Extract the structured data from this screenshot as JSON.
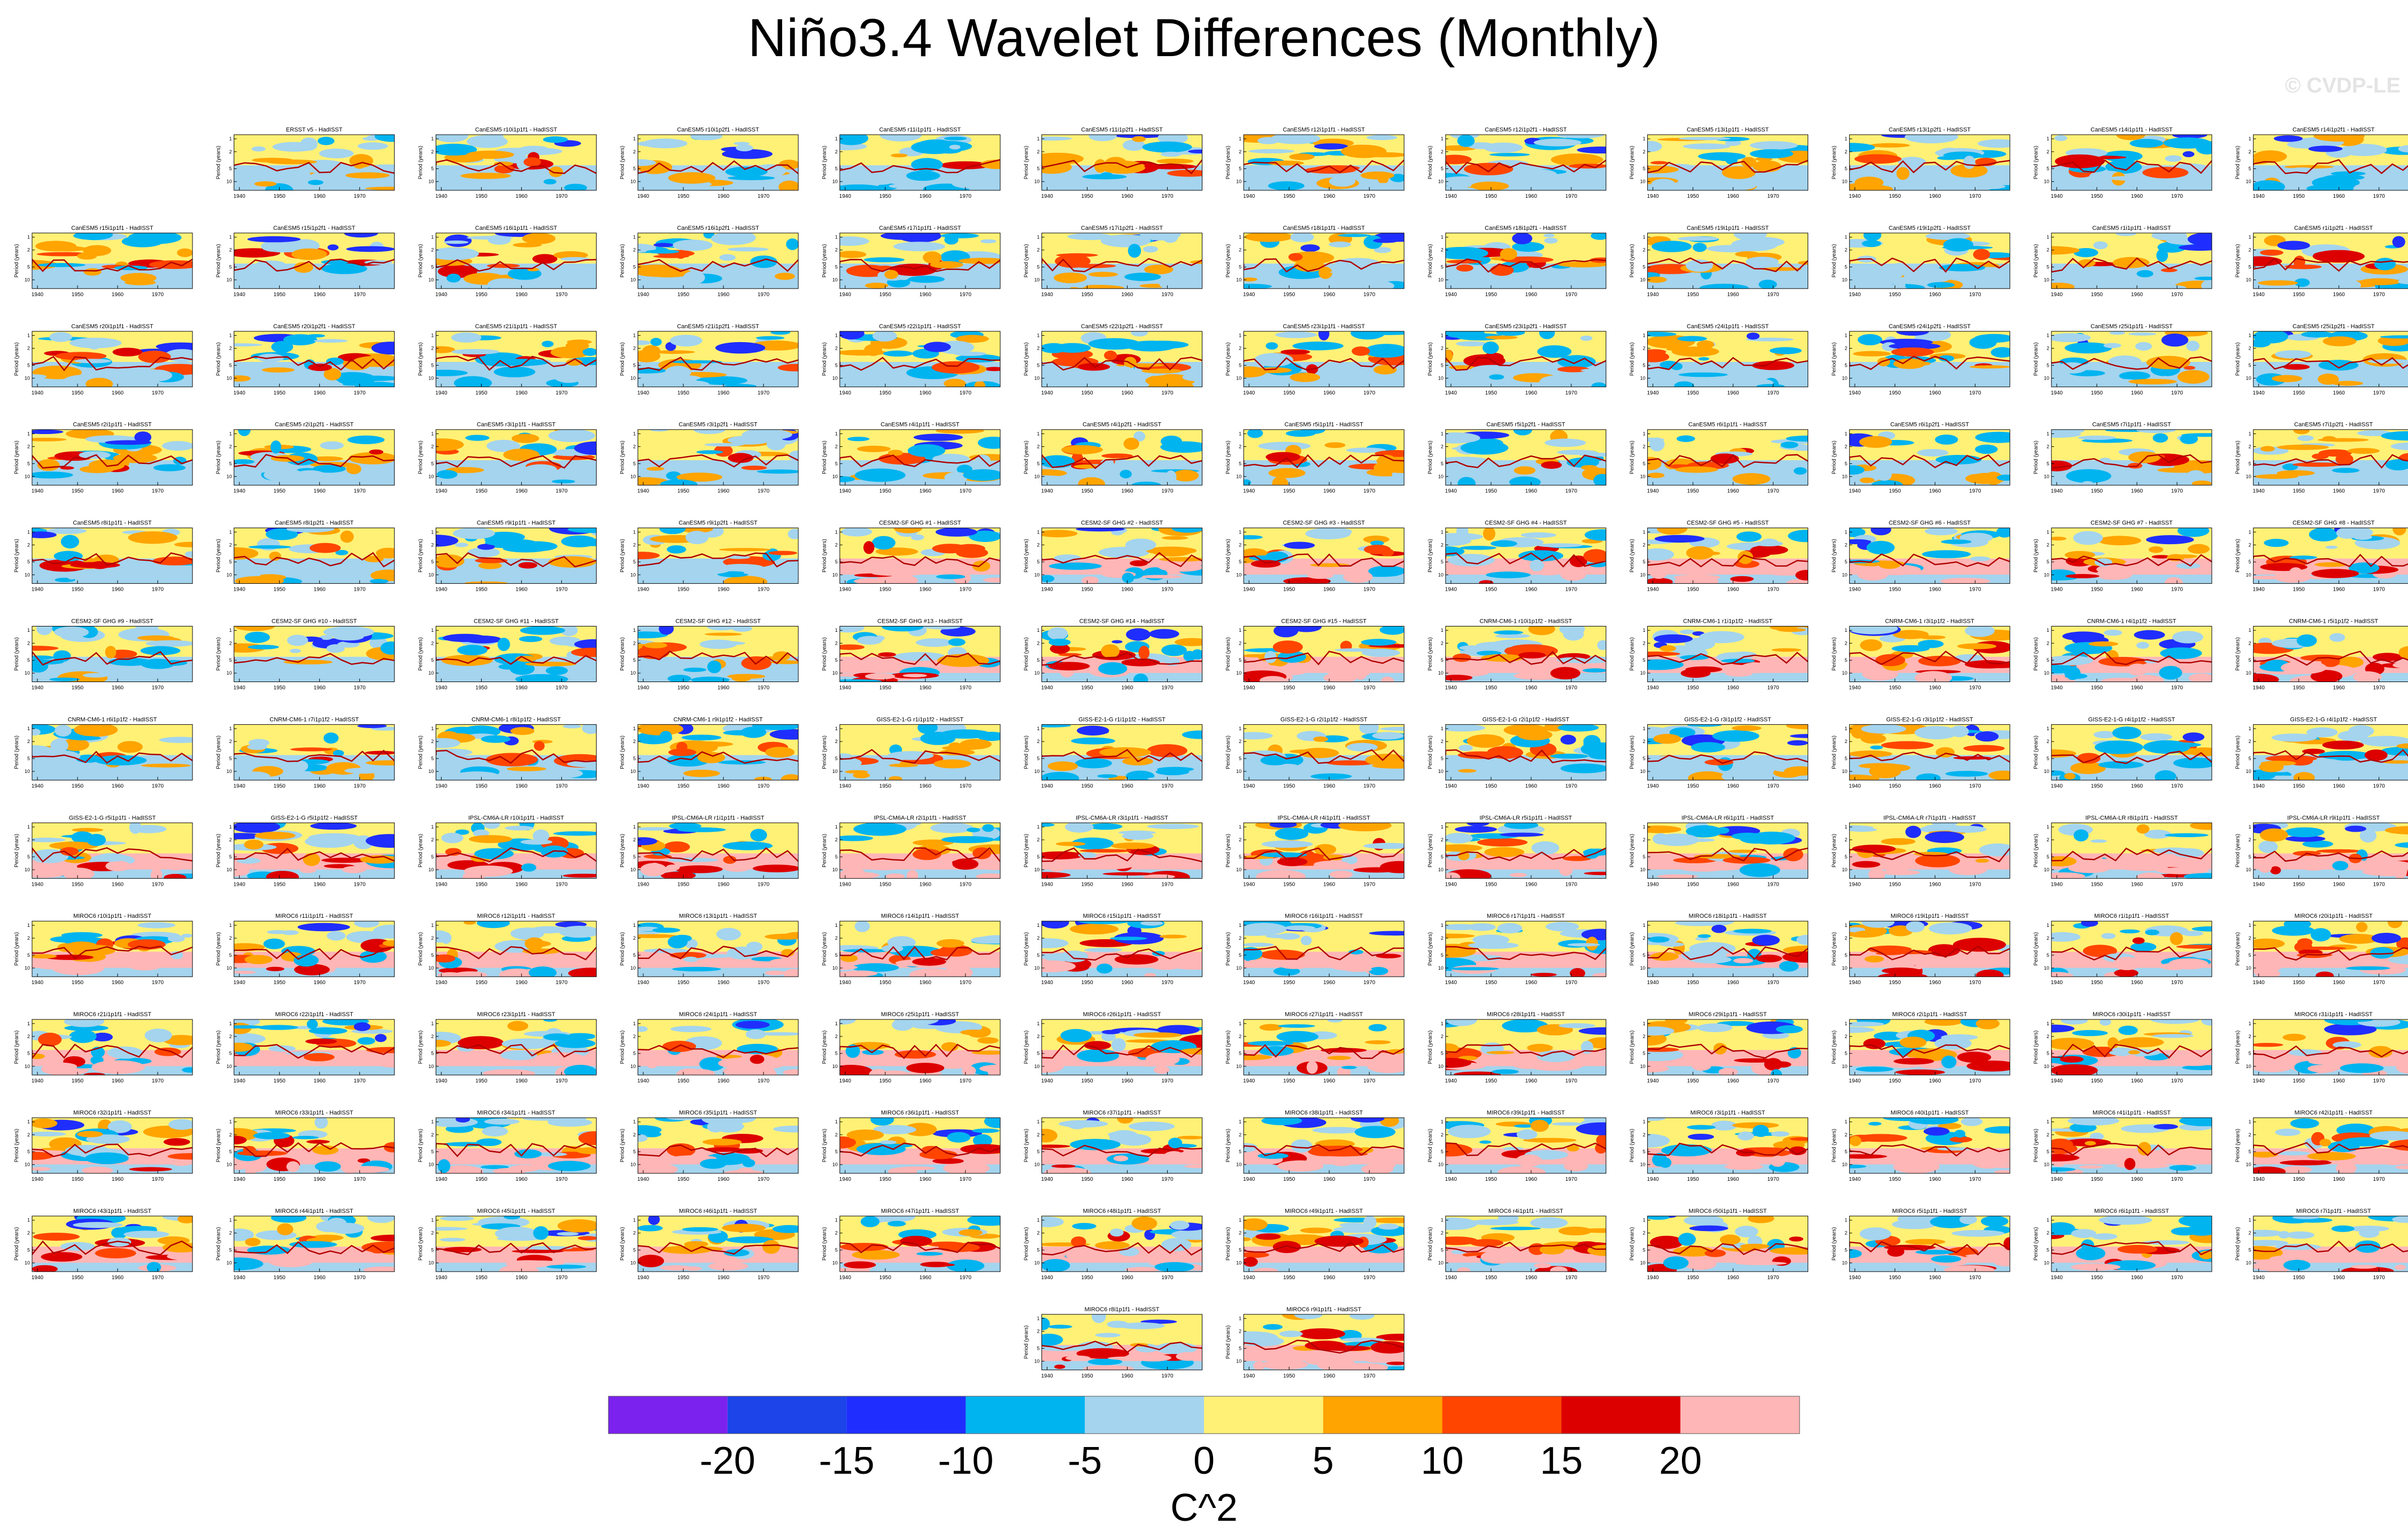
{
  "title": "Niño3.4 Wavelet Differences (Monthly)",
  "watermark": "© CVDP-LE",
  "chart_data": {
    "type": "heatmap",
    "description_kind": "small-multiples wavelet power difference panels (model member minus HadISST)",
    "xlabel": "",
    "ylabel": "Period (years)",
    "x_ticks": [
      "1940",
      "1950",
      "1960",
      "1970"
    ],
    "y_ticks": [
      "1",
      "2",
      "5",
      "10"
    ],
    "colorbar": {
      "label": "C^2",
      "tick_labels": [
        "-20",
        "-15",
        "-10",
        "-5",
        "0",
        "5",
        "10",
        "15",
        "20"
      ],
      "colors": [
        "#7b22ee",
        "#1c44e8",
        "#1f2eff",
        "#00b4f0",
        "#a4d4ee",
        "#fff176",
        "#ffa400",
        "#ff4500",
        "#dd0000",
        "#ffb6b6"
      ]
    },
    "panels": [
      {
        "row": 0,
        "col": 1,
        "title": "ERSST v5 - HadISST"
      },
      {
        "row": 0,
        "col": 2,
        "title": "CanESM5 r10i1p1f1 - HadISST"
      },
      {
        "row": 0,
        "col": 3,
        "title": "CanESM5 r10i1p2f1 - HadISST"
      },
      {
        "row": 0,
        "col": 4,
        "title": "CanESM5 r11i1p1f1 - HadISST"
      },
      {
        "row": 0,
        "col": 5,
        "title": "CanESM5 r11i1p2f1 - HadISST"
      },
      {
        "row": 0,
        "col": 6,
        "title": "CanESM5 r12i1p1f1 - HadISST"
      },
      {
        "row": 0,
        "col": 7,
        "title": "CanESM5 r12i1p2f1 - HadISST"
      },
      {
        "row": 0,
        "col": 8,
        "title": "CanESM5 r13i1p1f1 - HadISST"
      },
      {
        "row": 0,
        "col": 9,
        "title": "CanESM5 r13i1p2f1 - HadISST"
      },
      {
        "row": 0,
        "col": 10,
        "title": "CanESM5 r14i1p1f1 - HadISST"
      },
      {
        "row": 0,
        "col": 11,
        "title": "CanESM5 r14i1p2f1 - HadISST"
      },
      {
        "row": 1,
        "col": 0,
        "title": "CanESM5 r15i1p1f1 - HadISST"
      },
      {
        "row": 1,
        "col": 1,
        "title": "CanESM5 r15i1p2f1 - HadISST"
      },
      {
        "row": 1,
        "col": 2,
        "title": "CanESM5 r16i1p1f1 - HadISST"
      },
      {
        "row": 1,
        "col": 3,
        "title": "CanESM5 r16i1p2f1 - HadISST"
      },
      {
        "row": 1,
        "col": 4,
        "title": "CanESM5 r17i1p1f1 - HadISST"
      },
      {
        "row": 1,
        "col": 5,
        "title": "CanESM5 r17i1p2f1 - HadISST"
      },
      {
        "row": 1,
        "col": 6,
        "title": "CanESM5 r18i1p1f1 - HadISST"
      },
      {
        "row": 1,
        "col": 7,
        "title": "CanESM5 r18i1p2f1 - HadISST"
      },
      {
        "row": 1,
        "col": 8,
        "title": "CanESM5 r19i1p1f1 - HadISST"
      },
      {
        "row": 1,
        "col": 9,
        "title": "CanESM5 r19i1p2f1 - HadISST"
      },
      {
        "row": 1,
        "col": 10,
        "title": "CanESM5 r1i1p1f1 - HadISST"
      },
      {
        "row": 1,
        "col": 11,
        "title": "CanESM5 r1i1p2f1 - HadISST"
      },
      {
        "row": 2,
        "col": 0,
        "title": "CanESM5 r20i1p1f1 - HadISST"
      },
      {
        "row": 2,
        "col": 1,
        "title": "CanESM5 r20i1p2f1 - HadISST"
      },
      {
        "row": 2,
        "col": 2,
        "title": "CanESM5 r21i1p1f1 - HadISST"
      },
      {
        "row": 2,
        "col": 3,
        "title": "CanESM5 r21i1p2f1 - HadISST"
      },
      {
        "row": 2,
        "col": 4,
        "title": "CanESM5 r22i1p1f1 - HadISST"
      },
      {
        "row": 2,
        "col": 5,
        "title": "CanESM5 r22i1p2f1 - HadISST"
      },
      {
        "row": 2,
        "col": 6,
        "title": "CanESM5 r23i1p1f1 - HadISST"
      },
      {
        "row": 2,
        "col": 7,
        "title": "CanESM5 r23i1p2f1 - HadISST"
      },
      {
        "row": 2,
        "col": 8,
        "title": "CanESM5 r24i1p1f1 - HadISST"
      },
      {
        "row": 2,
        "col": 9,
        "title": "CanESM5 r24i1p2f1 - HadISST"
      },
      {
        "row": 2,
        "col": 10,
        "title": "CanESM5 r25i1p1f1 - HadISST"
      },
      {
        "row": 2,
        "col": 11,
        "title": "CanESM5 r25i1p2f1 - HadISST"
      },
      {
        "row": 3,
        "col": 0,
        "title": "CanESM5 r2i1p1f1 - HadISST"
      },
      {
        "row": 3,
        "col": 1,
        "title": "CanESM5 r2i1p2f1 - HadISST"
      },
      {
        "row": 3,
        "col": 2,
        "title": "CanESM5 r3i1p1f1 - HadISST"
      },
      {
        "row": 3,
        "col": 3,
        "title": "CanESM5 r3i1p2f1 - HadISST"
      },
      {
        "row": 3,
        "col": 4,
        "title": "CanESM5 r4i1p1f1 - HadISST"
      },
      {
        "row": 3,
        "col": 5,
        "title": "CanESM5 r4i1p2f1 - HadISST"
      },
      {
        "row": 3,
        "col": 6,
        "title": "CanESM5 r5i1p1f1 - HadISST"
      },
      {
        "row": 3,
        "col": 7,
        "title": "CanESM5 r5i1p2f1 - HadISST"
      },
      {
        "row": 3,
        "col": 8,
        "title": "CanESM5 r6i1p1f1 - HadISST"
      },
      {
        "row": 3,
        "col": 9,
        "title": "CanESM5 r6i1p2f1 - HadISST"
      },
      {
        "row": 3,
        "col": 10,
        "title": "CanESM5 r7i1p1f1 - HadISST"
      },
      {
        "row": 3,
        "col": 11,
        "title": "CanESM5 r7i1p2f1 - HadISST"
      },
      {
        "row": 4,
        "col": 0,
        "title": "CanESM5 r8i1p1f1 - HadISST"
      },
      {
        "row": 4,
        "col": 1,
        "title": "CanESM5 r8i1p2f1 - HadISST"
      },
      {
        "row": 4,
        "col": 2,
        "title": "CanESM5 r9i1p1f1 - HadISST"
      },
      {
        "row": 4,
        "col": 3,
        "title": "CanESM5 r9i1p2f1 - HadISST"
      },
      {
        "row": 4,
        "col": 4,
        "title": "CESM2-SF GHG #1 - HadISST"
      },
      {
        "row": 4,
        "col": 5,
        "title": "CESM2-SF GHG #2 - HadISST"
      },
      {
        "row": 4,
        "col": 6,
        "title": "CESM2-SF GHG #3 - HadISST"
      },
      {
        "row": 4,
        "col": 7,
        "title": "CESM2-SF GHG #4 - HadISST"
      },
      {
        "row": 4,
        "col": 8,
        "title": "CESM2-SF GHG #5 - HadISST"
      },
      {
        "row": 4,
        "col": 9,
        "title": "CESM2-SF GHG #6 - HadISST"
      },
      {
        "row": 4,
        "col": 10,
        "title": "CESM2-SF GHG #7 - HadISST"
      },
      {
        "row": 4,
        "col": 11,
        "title": "CESM2-SF GHG #8 - HadISST"
      },
      {
        "row": 5,
        "col": 0,
        "title": "CESM2-SF GHG #9 - HadISST"
      },
      {
        "row": 5,
        "col": 1,
        "title": "CESM2-SF GHG #10 - HadISST"
      },
      {
        "row": 5,
        "col": 2,
        "title": "CESM2-SF GHG #11 - HadISST"
      },
      {
        "row": 5,
        "col": 3,
        "title": "CESM2-SF GHG #12 - HadISST"
      },
      {
        "row": 5,
        "col": 4,
        "title": "CESM2-SF GHG #13 - HadISST"
      },
      {
        "row": 5,
        "col": 5,
        "title": "CESM2-SF GHG #14 - HadISST"
      },
      {
        "row": 5,
        "col": 6,
        "title": "CESM2-SF GHG #15 - HadISST"
      },
      {
        "row": 5,
        "col": 7,
        "title": "CNRM-CM6-1 r10i1p1f2 - HadISST"
      },
      {
        "row": 5,
        "col": 8,
        "title": "CNRM-CM6-1 r1i1p1f2 - HadISST"
      },
      {
        "row": 5,
        "col": 9,
        "title": "CNRM-CM6-1 r3i1p1f2 - HadISST"
      },
      {
        "row": 5,
        "col": 10,
        "title": "CNRM-CM6-1 r4i1p1f2 - HadISST"
      },
      {
        "row": 5,
        "col": 11,
        "title": "CNRM-CM6-1 r5i1p1f2 - HadISST"
      },
      {
        "row": 6,
        "col": 0,
        "title": "CNRM-CM6-1 r6i1p1f2 - HadISST"
      },
      {
        "row": 6,
        "col": 1,
        "title": "CNRM-CM6-1 r7i1p1f2 - HadISST"
      },
      {
        "row": 6,
        "col": 2,
        "title": "CNRM-CM6-1 r8i1p1f2 - HadISST"
      },
      {
        "row": 6,
        "col": 3,
        "title": "CNRM-CM6-1 r9i1p1f2 - HadISST"
      },
      {
        "row": 6,
        "col": 4,
        "title": "GISS-E2-1-G r1i1p1f2 - HadISST"
      },
      {
        "row": 6,
        "col": 5,
        "title": "GISS-E2-1-G r1i1p1f2 - HadISST"
      },
      {
        "row": 6,
        "col": 6,
        "title": "GISS-E2-1-G r2i1p1f2 - HadISST"
      },
      {
        "row": 6,
        "col": 7,
        "title": "GISS-E2-1-G r2i1p1f2 - HadISST"
      },
      {
        "row": 6,
        "col": 8,
        "title": "GISS-E2-1-G r3i1p1f2 - HadISST"
      },
      {
        "row": 6,
        "col": 9,
        "title": "GISS-E2-1-G r3i1p1f2 - HadISST"
      },
      {
        "row": 6,
        "col": 10,
        "title": "GISS-E2-1-G r4i1p1f2 - HadISST"
      },
      {
        "row": 6,
        "col": 11,
        "title": "GISS-E2-1-G r4i1p1f2 - HadISST"
      },
      {
        "row": 7,
        "col": 0,
        "title": "GISS-E2-1-G r5i1p1f1 - HadISST"
      },
      {
        "row": 7,
        "col": 1,
        "title": "GISS-E2-1-G r5i1p1f2 - HadISST"
      },
      {
        "row": 7,
        "col": 2,
        "title": "IPSL-CM6A-LR r10i1p1f1 - HadISST"
      },
      {
        "row": 7,
        "col": 3,
        "title": "IPSL-CM6A-LR r1i1p1f1 - HadISST"
      },
      {
        "row": 7,
        "col": 4,
        "title": "IPSL-CM6A-LR r2i1p1f1 - HadISST"
      },
      {
        "row": 7,
        "col": 5,
        "title": "IPSL-CM6A-LR r3i1p1f1 - HadISST"
      },
      {
        "row": 7,
        "col": 6,
        "title": "IPSL-CM6A-LR r4i1p1f1 - HadISST"
      },
      {
        "row": 7,
        "col": 7,
        "title": "IPSL-CM6A-LR r5i1p1f1 - HadISST"
      },
      {
        "row": 7,
        "col": 8,
        "title": "IPSL-CM6A-LR r6i1p1f1 - HadISST"
      },
      {
        "row": 7,
        "col": 9,
        "title": "IPSL-CM6A-LR r7i1p1f1 - HadISST"
      },
      {
        "row": 7,
        "col": 10,
        "title": "IPSL-CM6A-LR r8i1p1f1 - HadISST"
      },
      {
        "row": 7,
        "col": 11,
        "title": "IPSL-CM6A-LR r9i1p1f1 - HadISST"
      },
      {
        "row": 8,
        "col": 0,
        "title": "MIROC6 r10i1p1f1 - HadISST"
      },
      {
        "row": 8,
        "col": 1,
        "title": "MIROC6 r11i1p1f1 - HadISST"
      },
      {
        "row": 8,
        "col": 2,
        "title": "MIROC6 r12i1p1f1 - HadISST"
      },
      {
        "row": 8,
        "col": 3,
        "title": "MIROC6 r13i1p1f1 - HadISST"
      },
      {
        "row": 8,
        "col": 4,
        "title": "MIROC6 r14i1p1f1 - HadISST"
      },
      {
        "row": 8,
        "col": 5,
        "title": "MIROC6 r15i1p1f1 - HadISST"
      },
      {
        "row": 8,
        "col": 6,
        "title": "MIROC6 r16i1p1f1 - HadISST"
      },
      {
        "row": 8,
        "col": 7,
        "title": "MIROC6 r17i1p1f1 - HadISST"
      },
      {
        "row": 8,
        "col": 8,
        "title": "MIROC6 r18i1p1f1 - HadISST"
      },
      {
        "row": 8,
        "col": 9,
        "title": "MIROC6 r19i1p1f1 - HadISST"
      },
      {
        "row": 8,
        "col": 10,
        "title": "MIROC6 r1i1p1f1 - HadISST"
      },
      {
        "row": 8,
        "col": 11,
        "title": "MIROC6 r20i1p1f1 - HadISST"
      },
      {
        "row": 9,
        "col": 0,
        "title": "MIROC6 r21i1p1f1 - HadISST"
      },
      {
        "row": 9,
        "col": 1,
        "title": "MIROC6 r22i1p1f1 - HadISST"
      },
      {
        "row": 9,
        "col": 2,
        "title": "MIROC6 r23i1p1f1 - HadISST"
      },
      {
        "row": 9,
        "col": 3,
        "title": "MIROC6 r24i1p1f1 - HadISST"
      },
      {
        "row": 9,
        "col": 4,
        "title": "MIROC6 r25i1p1f1 - HadISST"
      },
      {
        "row": 9,
        "col": 5,
        "title": "MIROC6 r26i1p1f1 - HadISST"
      },
      {
        "row": 9,
        "col": 6,
        "title": "MIROC6 r27i1p1f1 - HadISST"
      },
      {
        "row": 9,
        "col": 7,
        "title": "MIROC6 r28i1p1f1 - HadISST"
      },
      {
        "row": 9,
        "col": 8,
        "title": "MIROC6 r29i1p1f1 - HadISST"
      },
      {
        "row": 9,
        "col": 9,
        "title": "MIROC6 r2i1p1f1 - HadISST"
      },
      {
        "row": 9,
        "col": 10,
        "title": "MIROC6 r30i1p1f1 - HadISST"
      },
      {
        "row": 9,
        "col": 11,
        "title": "MIROC6 r31i1p1f1 - HadISST"
      },
      {
        "row": 10,
        "col": 0,
        "title": "MIROC6 r32i1p1f1 - HadISST"
      },
      {
        "row": 10,
        "col": 1,
        "title": "MIROC6 r33i1p1f1 - HadISST"
      },
      {
        "row": 10,
        "col": 2,
        "title": "MIROC6 r34i1p1f1 - HadISST"
      },
      {
        "row": 10,
        "col": 3,
        "title": "MIROC6 r35i1p1f1 - HadISST"
      },
      {
        "row": 10,
        "col": 4,
        "title": "MIROC6 r36i1p1f1 - HadISST"
      },
      {
        "row": 10,
        "col": 5,
        "title": "MIROC6 r37i1p1f1 - HadISST"
      },
      {
        "row": 10,
        "col": 6,
        "title": "MIROC6 r38i1p1f1 - HadISST"
      },
      {
        "row": 10,
        "col": 7,
        "title": "MIROC6 r39i1p1f1 - HadISST"
      },
      {
        "row": 10,
        "col": 8,
        "title": "MIROC6 r3i1p1f1 - HadISST"
      },
      {
        "row": 10,
        "col": 9,
        "title": "MIROC6 r40i1p1f1 - HadISST"
      },
      {
        "row": 10,
        "col": 10,
        "title": "MIROC6 r41i1p1f1 - HadISST"
      },
      {
        "row": 10,
        "col": 11,
        "title": "MIROC6 r42i1p1f1 - HadISST"
      },
      {
        "row": 11,
        "col": 0,
        "title": "MIROC6 r43i1p1f1 - HadISST"
      },
      {
        "row": 11,
        "col": 1,
        "title": "MIROC6 r44i1p1f1 - HadISST"
      },
      {
        "row": 11,
        "col": 2,
        "title": "MIROC6 r45i1p1f1 - HadISST"
      },
      {
        "row": 11,
        "col": 3,
        "title": "MIROC6 r46i1p1f1 - HadISST"
      },
      {
        "row": 11,
        "col": 4,
        "title": "MIROC6 r47i1p1f1 - HadISST"
      },
      {
        "row": 11,
        "col": 5,
        "title": "MIROC6 r48i1p1f1 - HadISST"
      },
      {
        "row": 11,
        "col": 6,
        "title": "MIROC6 r49i1p1f1 - HadISST"
      },
      {
        "row": 11,
        "col": 7,
        "title": "MIROC6 r4i1p1f1 - HadISST"
      },
      {
        "row": 11,
        "col": 8,
        "title": "MIROC6 r50i1p1f1 - HadISST"
      },
      {
        "row": 11,
        "col": 9,
        "title": "MIROC6 r5i1p1f1 - HadISST"
      },
      {
        "row": 11,
        "col": 10,
        "title": "MIROC6 r6i1p1f1 - HadISST"
      },
      {
        "row": 11,
        "col": 11,
        "title": "MIROC6 r7i1p1f1 - HadISST"
      },
      {
        "row": 12,
        "col": 5,
        "title": "MIROC6 r8i1p1f1 - HadISST"
      },
      {
        "row": 12,
        "col": 6,
        "title": "MIROC6 r9i1p1f1 - HadISST"
      }
    ]
  }
}
